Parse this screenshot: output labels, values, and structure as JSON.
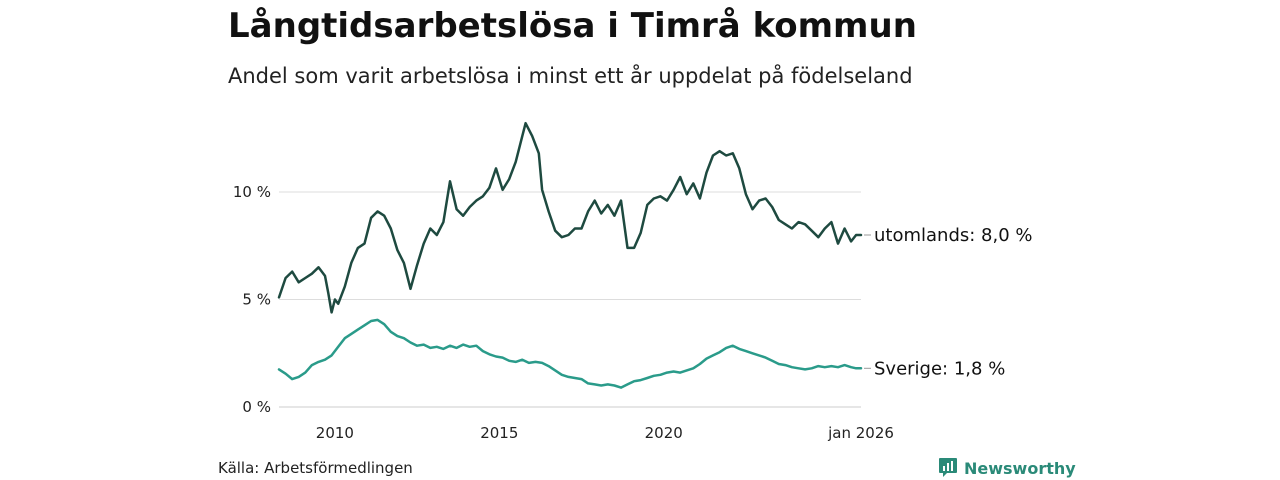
{
  "title": "Långtidsarbetslösa i Timrå kommun",
  "subtitle": "Andel som varit arbetslösa i minst ett år uppdelat på födelseland",
  "source": "Källa: Arbetsförmedlingen",
  "brand": "Newsworthy",
  "colors": {
    "utomlands": "#1e4a40",
    "sverige": "#2a9b8a",
    "grid": "#dddddd",
    "brand": "#2a8a78"
  },
  "chart_data": {
    "type": "line",
    "xlim": [
      2008.3,
      2026.0
    ],
    "ylim": [
      0,
      13.5
    ],
    "y_ticks": [
      {
        "value": 0,
        "label": "0 %"
      },
      {
        "value": 5,
        "label": "5 %"
      },
      {
        "value": 10,
        "label": "10 %"
      }
    ],
    "x_ticks": [
      {
        "value": 2010,
        "label": "2010"
      },
      {
        "value": 2015,
        "label": "2015"
      },
      {
        "value": 2020,
        "label": "2020"
      },
      {
        "value": 2026.0,
        "label": "jan 2026"
      }
    ],
    "series": [
      {
        "name": "utomlands",
        "end_label": "utomlands: 8,0 %",
        "points": [
          [
            2008.3,
            5.1
          ],
          [
            2008.5,
            6.0
          ],
          [
            2008.7,
            6.3
          ],
          [
            2008.9,
            5.8
          ],
          [
            2009.1,
            6.0
          ],
          [
            2009.3,
            6.2
          ],
          [
            2009.5,
            6.5
          ],
          [
            2009.7,
            6.1
          ],
          [
            2009.8,
            5.3
          ],
          [
            2009.9,
            4.4
          ],
          [
            2010.0,
            5.0
          ],
          [
            2010.1,
            4.8
          ],
          [
            2010.3,
            5.6
          ],
          [
            2010.5,
            6.7
          ],
          [
            2010.7,
            7.4
          ],
          [
            2010.9,
            7.6
          ],
          [
            2011.1,
            8.8
          ],
          [
            2011.3,
            9.1
          ],
          [
            2011.5,
            8.9
          ],
          [
            2011.7,
            8.3
          ],
          [
            2011.9,
            7.3
          ],
          [
            2012.1,
            6.7
          ],
          [
            2012.3,
            5.5
          ],
          [
            2012.5,
            6.6
          ],
          [
            2012.7,
            7.6
          ],
          [
            2012.9,
            8.3
          ],
          [
            2013.1,
            8.0
          ],
          [
            2013.3,
            8.6
          ],
          [
            2013.5,
            10.5
          ],
          [
            2013.7,
            9.2
          ],
          [
            2013.9,
            8.9
          ],
          [
            2014.1,
            9.3
          ],
          [
            2014.3,
            9.6
          ],
          [
            2014.5,
            9.8
          ],
          [
            2014.7,
            10.2
          ],
          [
            2014.9,
            11.1
          ],
          [
            2015.1,
            10.1
          ],
          [
            2015.3,
            10.6
          ],
          [
            2015.5,
            11.4
          ],
          [
            2015.7,
            12.6
          ],
          [
            2015.8,
            13.2
          ],
          [
            2016.0,
            12.6
          ],
          [
            2016.2,
            11.8
          ],
          [
            2016.3,
            10.1
          ],
          [
            2016.5,
            9.1
          ],
          [
            2016.7,
            8.2
          ],
          [
            2016.9,
            7.9
          ],
          [
            2017.1,
            8.0
          ],
          [
            2017.3,
            8.3
          ],
          [
            2017.5,
            8.3
          ],
          [
            2017.7,
            9.1
          ],
          [
            2017.9,
            9.6
          ],
          [
            2018.1,
            9.0
          ],
          [
            2018.3,
            9.4
          ],
          [
            2018.5,
            8.9
          ],
          [
            2018.7,
            9.6
          ],
          [
            2018.9,
            7.4
          ],
          [
            2019.1,
            7.4
          ],
          [
            2019.3,
            8.1
          ],
          [
            2019.5,
            9.4
          ],
          [
            2019.7,
            9.7
          ],
          [
            2019.9,
            9.8
          ],
          [
            2020.1,
            9.6
          ],
          [
            2020.3,
            10.1
          ],
          [
            2020.5,
            10.7
          ],
          [
            2020.7,
            9.9
          ],
          [
            2020.9,
            10.4
          ],
          [
            2021.1,
            9.7
          ],
          [
            2021.3,
            10.9
          ],
          [
            2021.5,
            11.7
          ],
          [
            2021.7,
            11.9
          ],
          [
            2021.9,
            11.7
          ],
          [
            2022.1,
            11.8
          ],
          [
            2022.3,
            11.1
          ],
          [
            2022.5,
            9.9
          ],
          [
            2022.7,
            9.2
          ],
          [
            2022.9,
            9.6
          ],
          [
            2023.1,
            9.7
          ],
          [
            2023.3,
            9.3
          ],
          [
            2023.5,
            8.7
          ],
          [
            2023.7,
            8.5
          ],
          [
            2023.9,
            8.3
          ],
          [
            2024.1,
            8.6
          ],
          [
            2024.3,
            8.5
          ],
          [
            2024.5,
            8.2
          ],
          [
            2024.7,
            7.9
          ],
          [
            2024.9,
            8.3
          ],
          [
            2025.1,
            8.6
          ],
          [
            2025.3,
            7.6
          ],
          [
            2025.5,
            8.3
          ],
          [
            2025.7,
            7.7
          ],
          [
            2025.85,
            8.0
          ],
          [
            2026.0,
            8.0
          ]
        ]
      },
      {
        "name": "sverige",
        "end_label": "Sverige: 1,8 %",
        "points": [
          [
            2008.3,
            1.75
          ],
          [
            2008.5,
            1.55
          ],
          [
            2008.7,
            1.3
          ],
          [
            2008.9,
            1.4
          ],
          [
            2009.1,
            1.6
          ],
          [
            2009.3,
            1.95
          ],
          [
            2009.5,
            2.1
          ],
          [
            2009.7,
            2.2
          ],
          [
            2009.9,
            2.4
          ],
          [
            2010.1,
            2.8
          ],
          [
            2010.3,
            3.2
          ],
          [
            2010.5,
            3.4
          ],
          [
            2010.7,
            3.6
          ],
          [
            2010.9,
            3.8
          ],
          [
            2011.1,
            4.0
          ],
          [
            2011.3,
            4.05
          ],
          [
            2011.5,
            3.85
          ],
          [
            2011.7,
            3.5
          ],
          [
            2011.9,
            3.3
          ],
          [
            2012.1,
            3.2
          ],
          [
            2012.3,
            3.0
          ],
          [
            2012.5,
            2.85
          ],
          [
            2012.7,
            2.9
          ],
          [
            2012.9,
            2.75
          ],
          [
            2013.1,
            2.8
          ],
          [
            2013.3,
            2.7
          ],
          [
            2013.5,
            2.85
          ],
          [
            2013.7,
            2.75
          ],
          [
            2013.9,
            2.9
          ],
          [
            2014.1,
            2.8
          ],
          [
            2014.3,
            2.85
          ],
          [
            2014.5,
            2.6
          ],
          [
            2014.7,
            2.45
          ],
          [
            2014.9,
            2.35
          ],
          [
            2015.1,
            2.3
          ],
          [
            2015.3,
            2.15
          ],
          [
            2015.5,
            2.1
          ],
          [
            2015.7,
            2.2
          ],
          [
            2015.9,
            2.05
          ],
          [
            2016.1,
            2.1
          ],
          [
            2016.3,
            2.05
          ],
          [
            2016.5,
            1.9
          ],
          [
            2016.7,
            1.7
          ],
          [
            2016.9,
            1.5
          ],
          [
            2017.1,
            1.4
          ],
          [
            2017.3,
            1.35
          ],
          [
            2017.5,
            1.3
          ],
          [
            2017.7,
            1.1
          ],
          [
            2017.9,
            1.05
          ],
          [
            2018.1,
            1.0
          ],
          [
            2018.3,
            1.05
          ],
          [
            2018.5,
            1.0
          ],
          [
            2018.7,
            0.9
          ],
          [
            2018.9,
            1.05
          ],
          [
            2019.1,
            1.2
          ],
          [
            2019.3,
            1.25
          ],
          [
            2019.5,
            1.35
          ],
          [
            2019.7,
            1.45
          ],
          [
            2019.9,
            1.5
          ],
          [
            2020.1,
            1.6
          ],
          [
            2020.3,
            1.65
          ],
          [
            2020.5,
            1.6
          ],
          [
            2020.7,
            1.7
          ],
          [
            2020.9,
            1.8
          ],
          [
            2021.1,
            2.0
          ],
          [
            2021.3,
            2.25
          ],
          [
            2021.5,
            2.4
          ],
          [
            2021.7,
            2.55
          ],
          [
            2021.9,
            2.75
          ],
          [
            2022.1,
            2.85
          ],
          [
            2022.3,
            2.7
          ],
          [
            2022.5,
            2.6
          ],
          [
            2022.7,
            2.5
          ],
          [
            2022.9,
            2.4
          ],
          [
            2023.1,
            2.3
          ],
          [
            2023.3,
            2.15
          ],
          [
            2023.5,
            2.0
          ],
          [
            2023.7,
            1.95
          ],
          [
            2023.9,
            1.85
          ],
          [
            2024.1,
            1.8
          ],
          [
            2024.3,
            1.75
          ],
          [
            2024.5,
            1.8
          ],
          [
            2024.7,
            1.9
          ],
          [
            2024.9,
            1.85
          ],
          [
            2025.1,
            1.9
          ],
          [
            2025.3,
            1.85
          ],
          [
            2025.5,
            1.95
          ],
          [
            2025.7,
            1.85
          ],
          [
            2025.85,
            1.8
          ],
          [
            2026.0,
            1.8
          ]
        ]
      }
    ]
  }
}
